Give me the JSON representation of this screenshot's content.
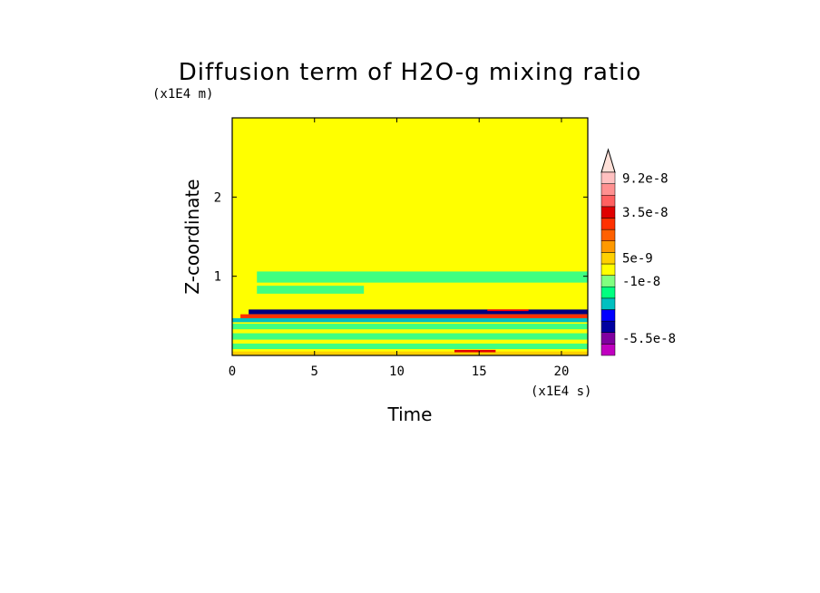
{
  "chart_data": {
    "type": "heatmap",
    "title": "Diffusion term of H2O-g mixing ratio",
    "xlabel": "Time",
    "ylabel": "Z-coordinate",
    "x_unit": "(x1E4 s)",
    "y_unit": "(x1E4 m)",
    "xlim": [
      0,
      21.6
    ],
    "ylim": [
      0,
      3.0
    ],
    "x_ticks": [
      "0",
      "5",
      "10",
      "15",
      "20"
    ],
    "y_ticks": [
      "1",
      "2"
    ],
    "x_tick_values": [
      0,
      5,
      10,
      15,
      20
    ],
    "y_tick_values": [
      1,
      2
    ],
    "background_color": "#ffff00",
    "colorbar": {
      "colors": [
        "#c000c0",
        "#8000a0",
        "#0000a0",
        "#0000ff",
        "#00c0c0",
        "#00ff80",
        "#80ff80",
        "#ffff00",
        "#ffd000",
        "#ff9900",
        "#ff6000",
        "#ff3000",
        "#e00000",
        "#ff6060",
        "#ff9090",
        "#ffc0c0"
      ],
      "labels": [
        "9.2e-8",
        "3.5e-8",
        "5e-9",
        "-1e-8",
        "-5.5e-8"
      ]
    },
    "bands": [
      {
        "z0": 0.92,
        "z1": 1.06,
        "t0": 1.5,
        "t1": 21.6,
        "color": "#40ff80",
        "note": ""
      },
      {
        "z0": 0.78,
        "z1": 0.88,
        "t0": 1.5,
        "t1": 8.0,
        "color": "#40ff80",
        "note": ""
      },
      {
        "z0": 0.52,
        "z1": 0.58,
        "t0": 1.0,
        "t1": 21.6,
        "color": "#000080",
        "note": ""
      },
      {
        "z0": 0.47,
        "z1": 0.52,
        "t0": 0.5,
        "t1": 21.6,
        "color": "#ff3000",
        "note": ""
      },
      {
        "z0": 0.42,
        "z1": 0.47,
        "t0": 0.0,
        "t1": 21.6,
        "color": "#00c0c0",
        "note": ""
      },
      {
        "z0": 0.33,
        "z1": 0.4,
        "t0": 0.0,
        "t1": 21.6,
        "color": "#40ff80",
        "note": ""
      },
      {
        "z0": 0.2,
        "z1": 0.28,
        "t0": 0.0,
        "t1": 21.6,
        "color": "#40ff80",
        "note": ""
      },
      {
        "z0": 0.08,
        "z1": 0.15,
        "t0": 0.0,
        "t1": 21.6,
        "color": "#40ff80",
        "note": ""
      },
      {
        "z0": 0.0,
        "z1": 0.05,
        "t0": 0.0,
        "t1": 21.6,
        "color": "#ffd000",
        "note": ""
      },
      {
        "z0": 0.04,
        "z1": 0.07,
        "t0": 13.5,
        "t1": 16.0,
        "color": "#e00000",
        "note": ""
      },
      {
        "z0": 0.56,
        "z1": 0.58,
        "t0": 15.5,
        "t1": 18.0,
        "color": "#ff0000",
        "note": ""
      }
    ]
  }
}
